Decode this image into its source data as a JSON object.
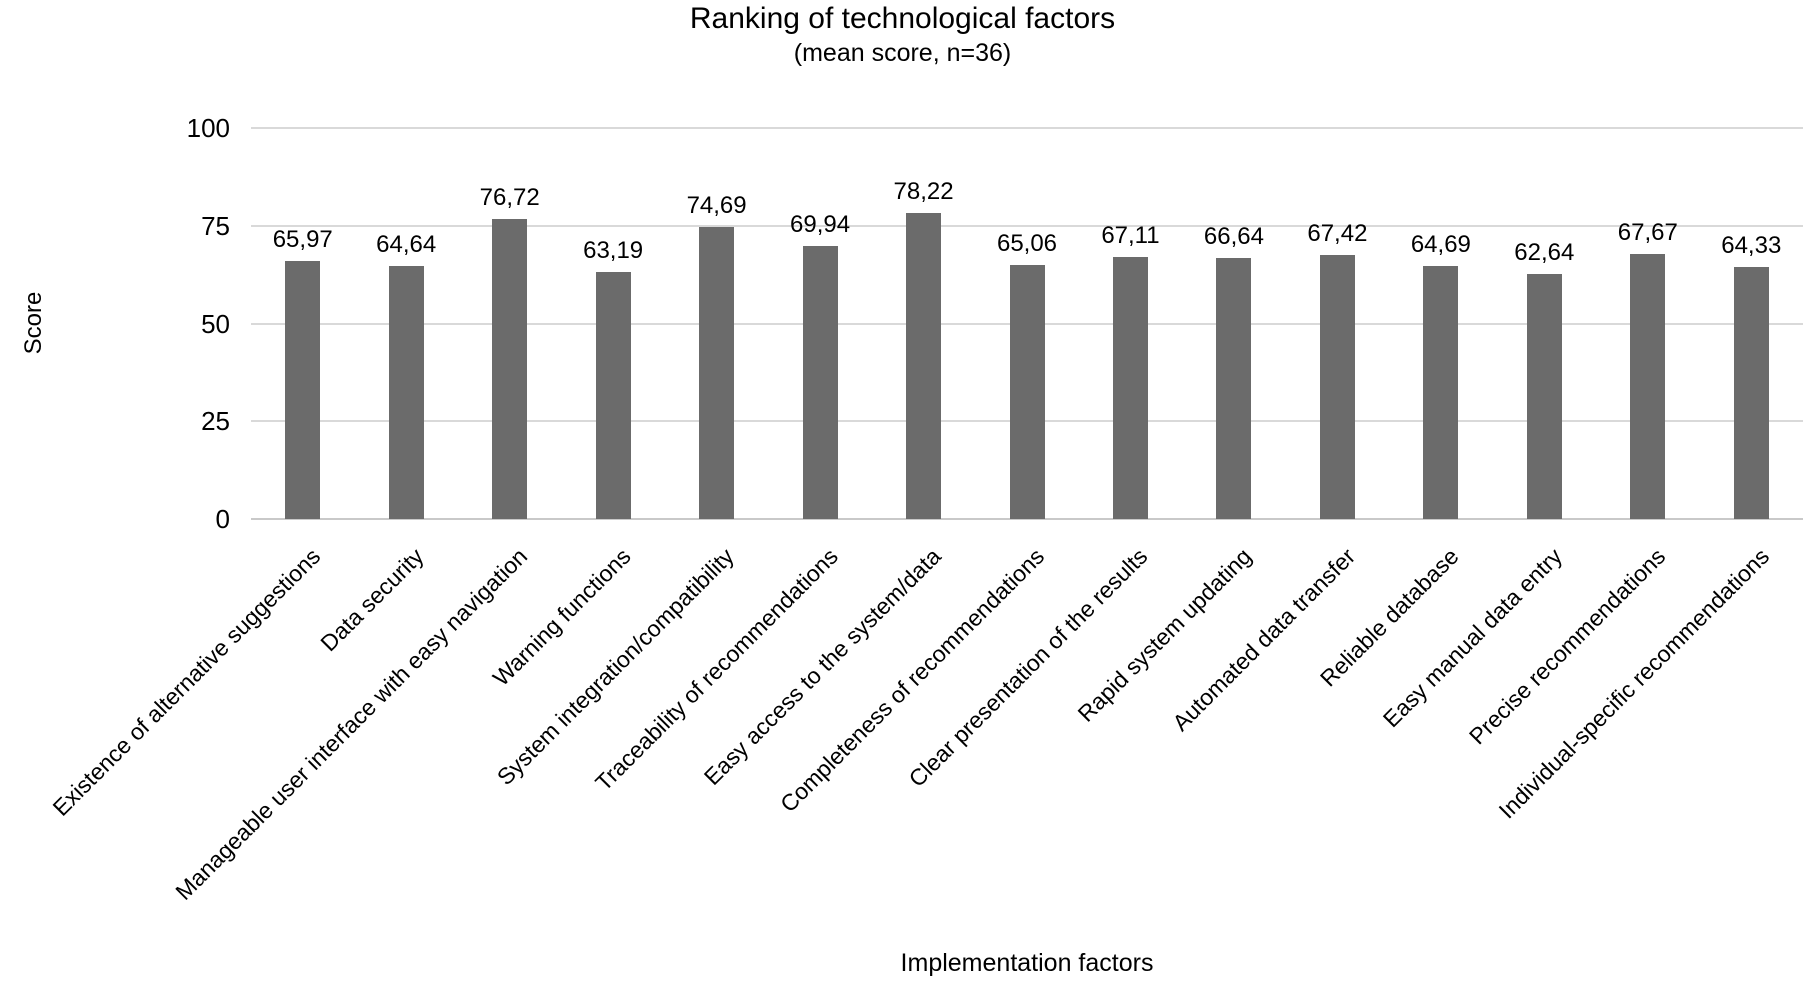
{
  "chart_data": {
    "type": "bar",
    "title": "Ranking of technological factors",
    "subtitle": "(mean score, n=36)",
    "xlabel": "Implementation factors",
    "ylabel": "Score",
    "ylim": [
      0,
      100
    ],
    "yticks": [
      100,
      75,
      50,
      25,
      0
    ],
    "grid": "horizontal",
    "legend": "none",
    "bar_color": "#6b6b6b",
    "gridline_color": "#d9d9d9",
    "axisline_color": "#c9c9c9",
    "text_color": "#000000",
    "decimal_separator": ",",
    "categories": [
      "Existence of alternative suggestions",
      "Data security",
      "Manageable user interface with easy navigation",
      "Warning functions",
      "System integration/compatibility",
      "Traceability of recommendations",
      "Easy access to the system/data",
      "Completeness of recommendations",
      "Clear presentation of the results",
      "Rapid system updating",
      "Automated data transfer",
      "Reliable database",
      "Easy manual data entry",
      "Precise recommendations",
      "Individual-specific recommendations"
    ],
    "values": [
      65.97,
      64.64,
      76.72,
      63.19,
      74.69,
      69.94,
      78.22,
      65.06,
      67.11,
      66.64,
      67.42,
      64.69,
      62.64,
      67.67,
      64.33
    ],
    "value_labels": [
      "65,97",
      "64,64",
      "76,72",
      "63,19",
      "74,69",
      "69,94",
      "78,22",
      "65,06",
      "67,11",
      "66,64",
      "67,42",
      "64,69",
      "62,64",
      "67,67",
      "64,33"
    ]
  }
}
